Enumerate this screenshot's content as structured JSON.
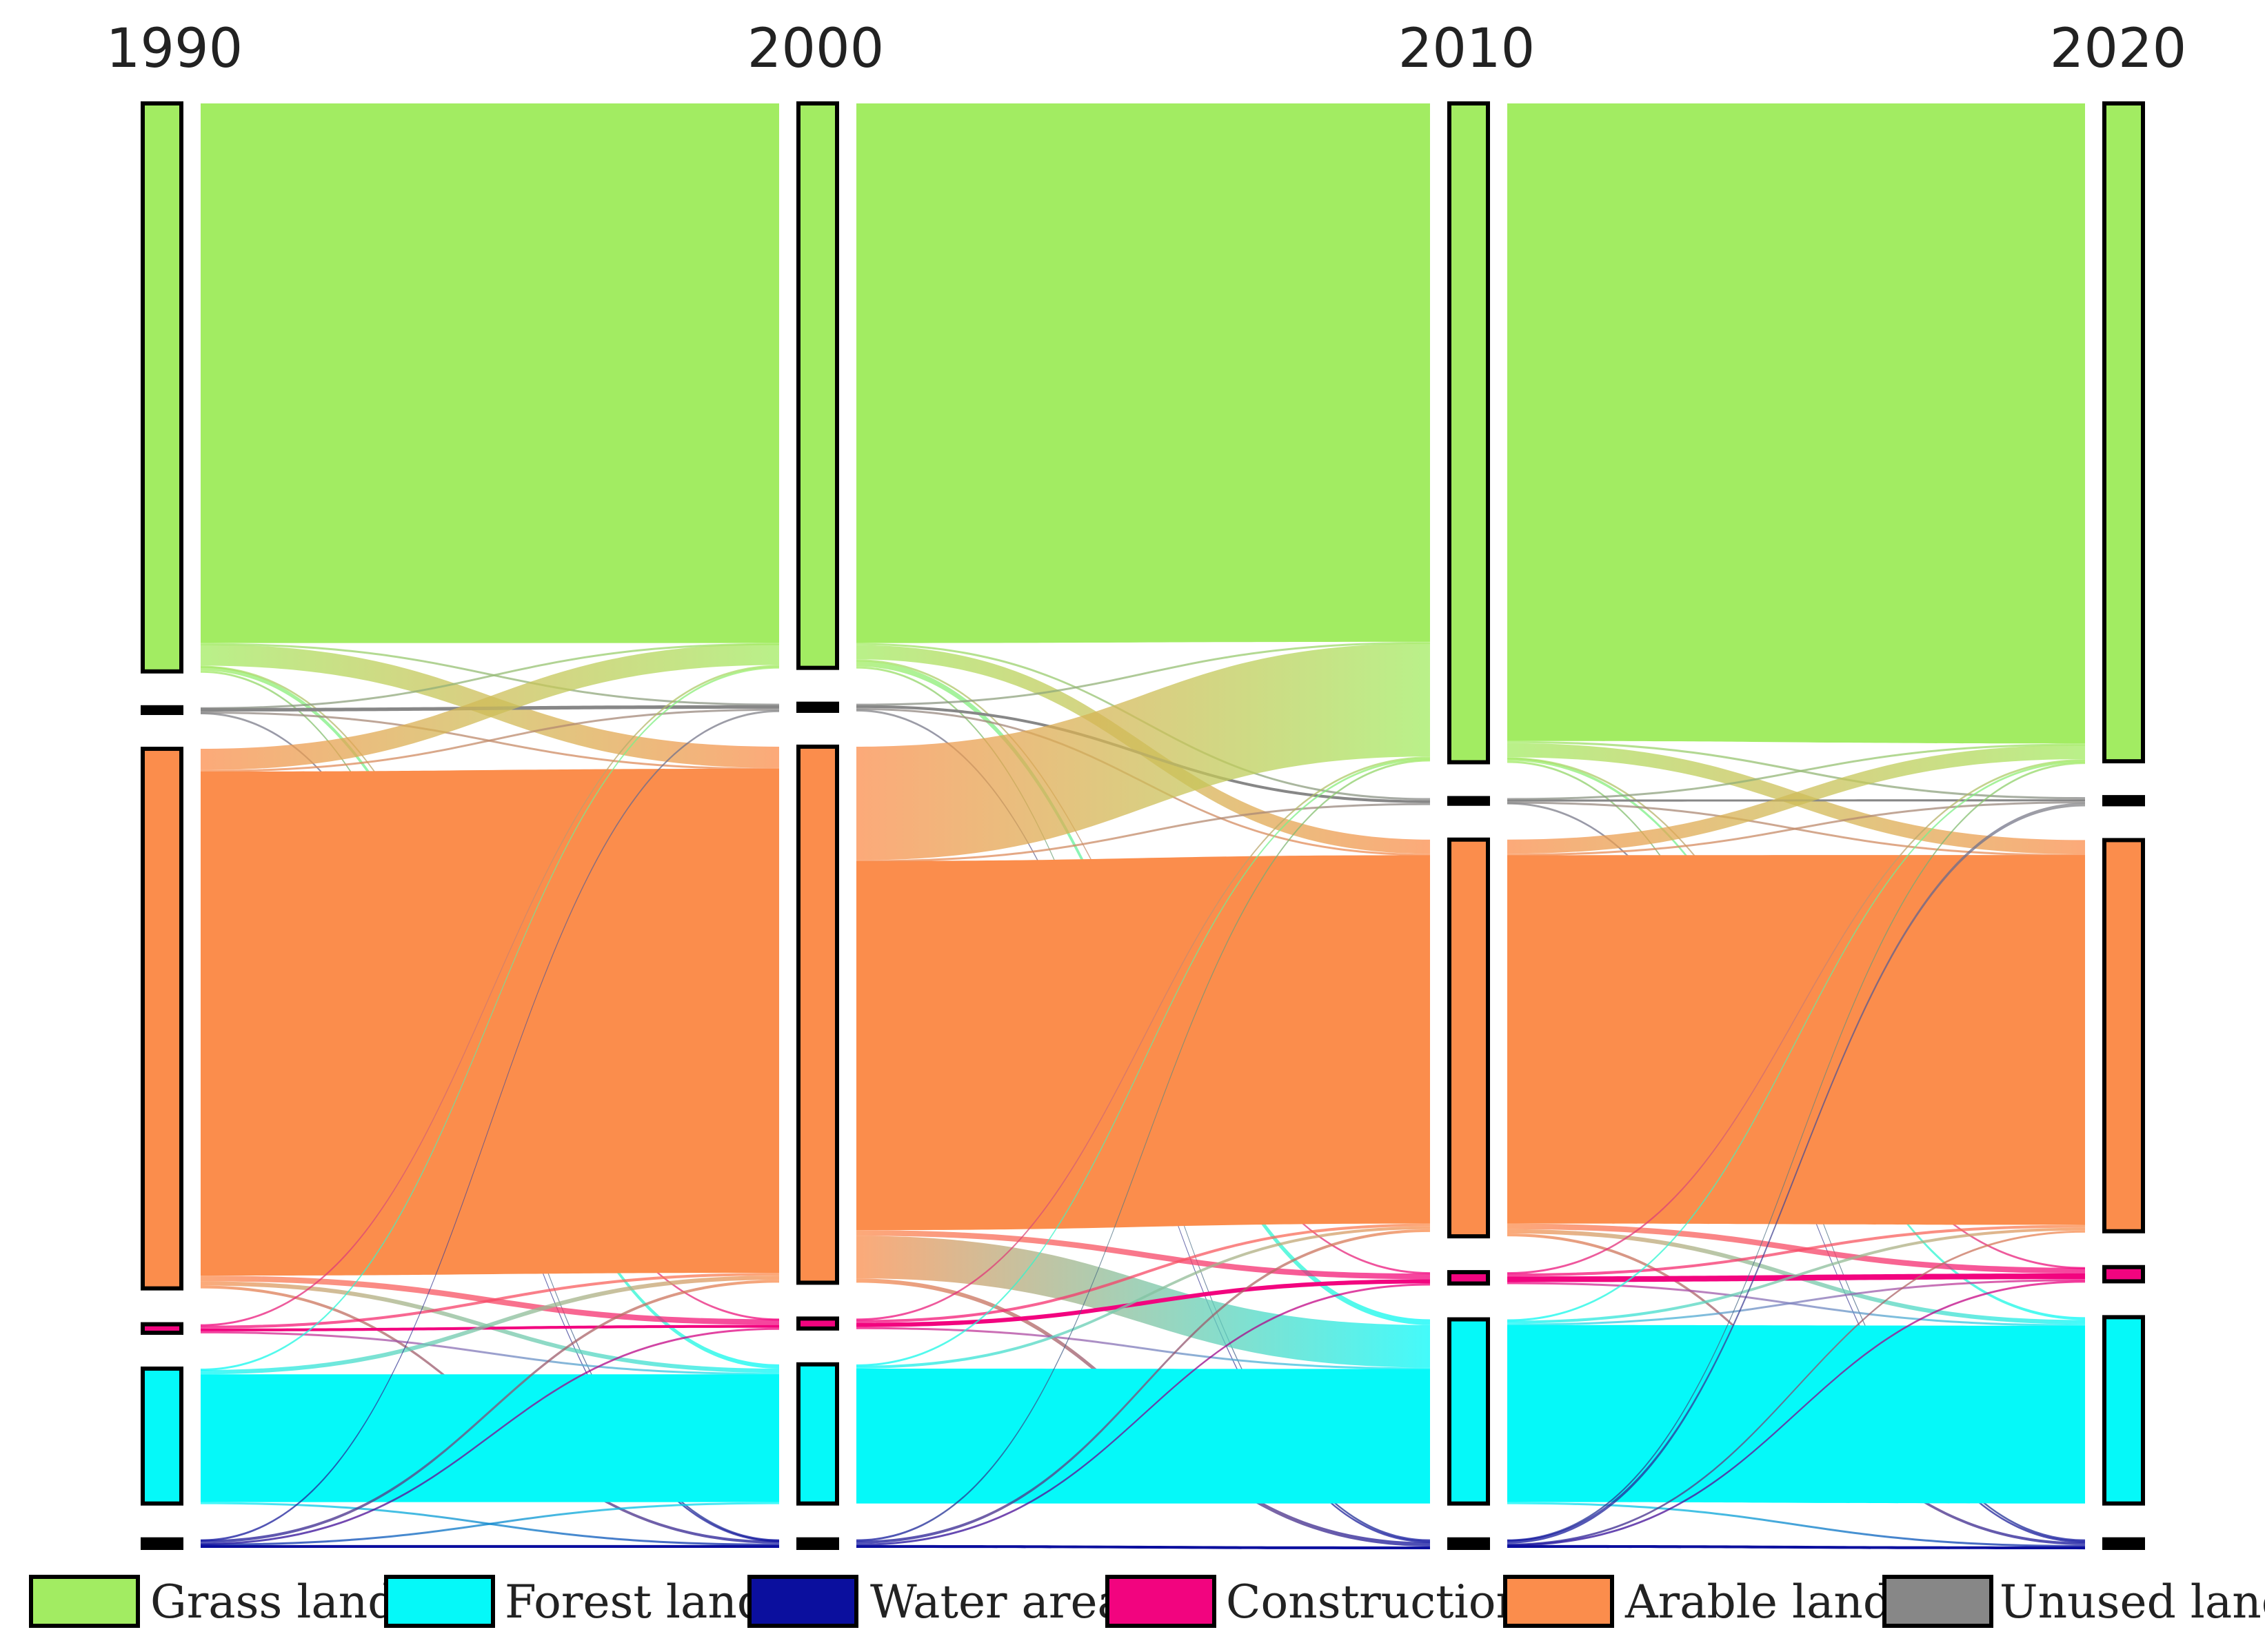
{
  "chart_data": {
    "type": "sankey",
    "years": [
      "1990",
      "2000",
      "2010",
      "2020"
    ],
    "categories": [
      {
        "key": "grass",
        "label": "Grass land",
        "color": "#a2ec62"
      },
      {
        "key": "unused",
        "label": "Unused land",
        "color": "#878787"
      },
      {
        "key": "arable",
        "label": "Arable land",
        "color": "#fb8d4c"
      },
      {
        "key": "construction",
        "label": "Construction",
        "color": "#f2047f"
      },
      {
        "key": "forest",
        "label": "Forest land",
        "color": "#05f9f9"
      },
      {
        "key": "water",
        "label": "Water area",
        "color": "#0b0f9e"
      }
    ],
    "legend_order": [
      "grass",
      "forest",
      "water",
      "construction",
      "arable",
      "unused"
    ],
    "node_values": [
      {
        "grass": 800,
        "unused": 8,
        "arable": 760,
        "construction": 12,
        "forest": 190,
        "water": 12
      },
      {
        "grass": 795,
        "unused": 10,
        "arable": 755,
        "construction": 14,
        "forest": 196,
        "water": 12
      },
      {
        "grass": 930,
        "unused": 8,
        "arable": 560,
        "construction": 16,
        "forest": 260,
        "water": 12
      },
      {
        "grass": 925,
        "unused": 10,
        "arable": 550,
        "construction": 20,
        "forest": 262,
        "water": 12
      }
    ],
    "flows": [
      [
        {
          "from": "grass",
          "to": "grass",
          "value": 760
        },
        {
          "from": "grass",
          "to": "arable",
          "value": 30
        },
        {
          "from": "grass",
          "to": "forest",
          "value": 6
        },
        {
          "from": "grass",
          "to": "unused",
          "value": 2
        },
        {
          "from": "grass",
          "to": "water",
          "value": 1
        },
        {
          "from": "grass",
          "to": "construction",
          "value": 1
        },
        {
          "from": "unused",
          "to": "unused",
          "value": 5
        },
        {
          "from": "unused",
          "to": "grass",
          "value": 1
        },
        {
          "from": "unused",
          "to": "arable",
          "value": 1
        },
        {
          "from": "unused",
          "to": "water",
          "value": 1
        },
        {
          "from": "arable",
          "to": "arable",
          "value": 710
        },
        {
          "from": "arable",
          "to": "grass",
          "value": 30
        },
        {
          "from": "arable",
          "to": "construction",
          "value": 8
        },
        {
          "from": "arable",
          "to": "forest",
          "value": 6
        },
        {
          "from": "arable",
          "to": "unused",
          "value": 2
        },
        {
          "from": "arable",
          "to": "water",
          "value": 4
        },
        {
          "from": "construction",
          "to": "construction",
          "value": 4
        },
        {
          "from": "construction",
          "to": "arable",
          "value": 4
        },
        {
          "from": "construction",
          "to": "grass",
          "value": 2
        },
        {
          "from": "construction",
          "to": "forest",
          "value": 2
        },
        {
          "from": "forest",
          "to": "forest",
          "value": 180
        },
        {
          "from": "forest",
          "to": "arable",
          "value": 6
        },
        {
          "from": "forest",
          "to": "grass",
          "value": 2
        },
        {
          "from": "forest",
          "to": "water",
          "value": 2
        },
        {
          "from": "water",
          "to": "water",
          "value": 4
        },
        {
          "from": "water",
          "to": "arable",
          "value": 4
        },
        {
          "from": "water",
          "to": "forest",
          "value": 2
        },
        {
          "from": "water",
          "to": "unused",
          "value": 1
        },
        {
          "from": "water",
          "to": "construction",
          "value": 1
        }
      ],
      [
        {
          "from": "grass",
          "to": "grass",
          "value": 760
        },
        {
          "from": "grass",
          "to": "arable",
          "value": 20
        },
        {
          "from": "grass",
          "to": "forest",
          "value": 8
        },
        {
          "from": "grass",
          "to": "unused",
          "value": 3
        },
        {
          "from": "grass",
          "to": "water",
          "value": 2
        },
        {
          "from": "grass",
          "to": "construction",
          "value": 2
        },
        {
          "from": "unused",
          "to": "unused",
          "value": 4
        },
        {
          "from": "unused",
          "to": "grass",
          "value": 2
        },
        {
          "from": "unused",
          "to": "arable",
          "value": 2
        },
        {
          "from": "unused",
          "to": "water",
          "value": 2
        },
        {
          "from": "arable",
          "to": "arable",
          "value": 520
        },
        {
          "from": "arable",
          "to": "grass",
          "value": 160
        },
        {
          "from": "arable",
          "to": "forest",
          "value": 60
        },
        {
          "from": "arable",
          "to": "construction",
          "value": 8
        },
        {
          "from": "arable",
          "to": "unused",
          "value": 1
        },
        {
          "from": "arable",
          "to": "water",
          "value": 6
        },
        {
          "from": "construction",
          "to": "construction",
          "value": 6
        },
        {
          "from": "construction",
          "to": "arable",
          "value": 4
        },
        {
          "from": "construction",
          "to": "grass",
          "value": 2
        },
        {
          "from": "construction",
          "to": "forest",
          "value": 2
        },
        {
          "from": "forest",
          "to": "forest",
          "value": 190
        },
        {
          "from": "forest",
          "to": "arable",
          "value": 4
        },
        {
          "from": "forest",
          "to": "grass",
          "value": 2
        },
        {
          "from": "water",
          "to": "water",
          "value": 4
        },
        {
          "from": "water",
          "to": "arable",
          "value": 4
        },
        {
          "from": "water",
          "to": "grass",
          "value": 2
        },
        {
          "from": "water",
          "to": "construction",
          "value": 2
        }
      ],
      [
        {
          "from": "grass",
          "to": "grass",
          "value": 900
        },
        {
          "from": "grass",
          "to": "arable",
          "value": 20
        },
        {
          "from": "grass",
          "to": "forest",
          "value": 4
        },
        {
          "from": "grass",
          "to": "unused",
          "value": 3
        },
        {
          "from": "grass",
          "to": "water",
          "value": 2
        },
        {
          "from": "grass",
          "to": "construction",
          "value": 1
        },
        {
          "from": "unused",
          "to": "unused",
          "value": 3
        },
        {
          "from": "unused",
          "to": "grass",
          "value": 2
        },
        {
          "from": "unused",
          "to": "arable",
          "value": 1
        },
        {
          "from": "unused",
          "to": "water",
          "value": 2
        },
        {
          "from": "arable",
          "to": "arable",
          "value": 520
        },
        {
          "from": "arable",
          "to": "grass",
          "value": 20
        },
        {
          "from": "arable",
          "to": "construction",
          "value": 8
        },
        {
          "from": "arable",
          "to": "forest",
          "value": 6
        },
        {
          "from": "arable",
          "to": "unused",
          "value": 2
        },
        {
          "from": "arable",
          "to": "water",
          "value": 4
        },
        {
          "from": "construction",
          "to": "construction",
          "value": 8
        },
        {
          "from": "construction",
          "to": "arable",
          "value": 4
        },
        {
          "from": "construction",
          "to": "grass",
          "value": 2
        },
        {
          "from": "construction",
          "to": "forest",
          "value": 2
        },
        {
          "from": "forest",
          "to": "forest",
          "value": 250
        },
        {
          "from": "forest",
          "to": "arable",
          "value": 4
        },
        {
          "from": "forest",
          "to": "grass",
          "value": 2
        },
        {
          "from": "forest",
          "to": "construction",
          "value": 2
        },
        {
          "from": "forest",
          "to": "water",
          "value": 2
        },
        {
          "from": "water",
          "to": "water",
          "value": 4
        },
        {
          "from": "water",
          "to": "arable",
          "value": 1
        },
        {
          "from": "water",
          "to": "grass",
          "value": 1
        },
        {
          "from": "water",
          "to": "unused",
          "value": 5
        },
        {
          "from": "water",
          "to": "construction",
          "value": 1
        }
      ]
    ]
  }
}
